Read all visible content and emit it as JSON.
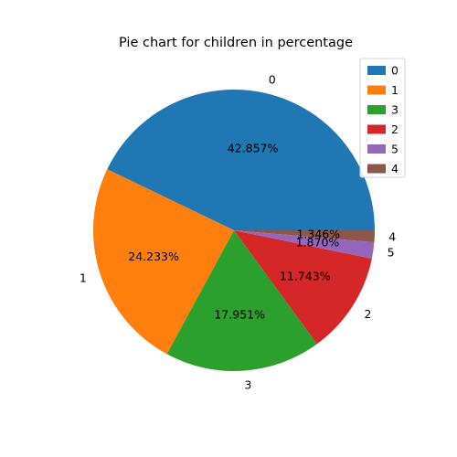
{
  "chart_data": {
    "type": "pie",
    "title": "Pie chart for children in percentage",
    "categories": [
      "0",
      "1",
      "3",
      "2",
      "5",
      "4"
    ],
    "values": [
      42.857,
      24.233,
      17.951,
      11.743,
      1.87,
      1.346
    ],
    "percent_labels": [
      "42.857%",
      "24.233%",
      "17.951%",
      "11.743%",
      "1.870%",
      "1.346%"
    ],
    "colors": [
      "#1f77b4",
      "#ff7f0e",
      "#2ca02c",
      "#d62728",
      "#9467bd",
      "#8c564b"
    ],
    "start_angle_deg": 0,
    "direction": "counterclockwise",
    "legend": {
      "placement": "top-right",
      "entries": [
        "0",
        "1",
        "3",
        "2",
        "5",
        "4"
      ]
    }
  }
}
